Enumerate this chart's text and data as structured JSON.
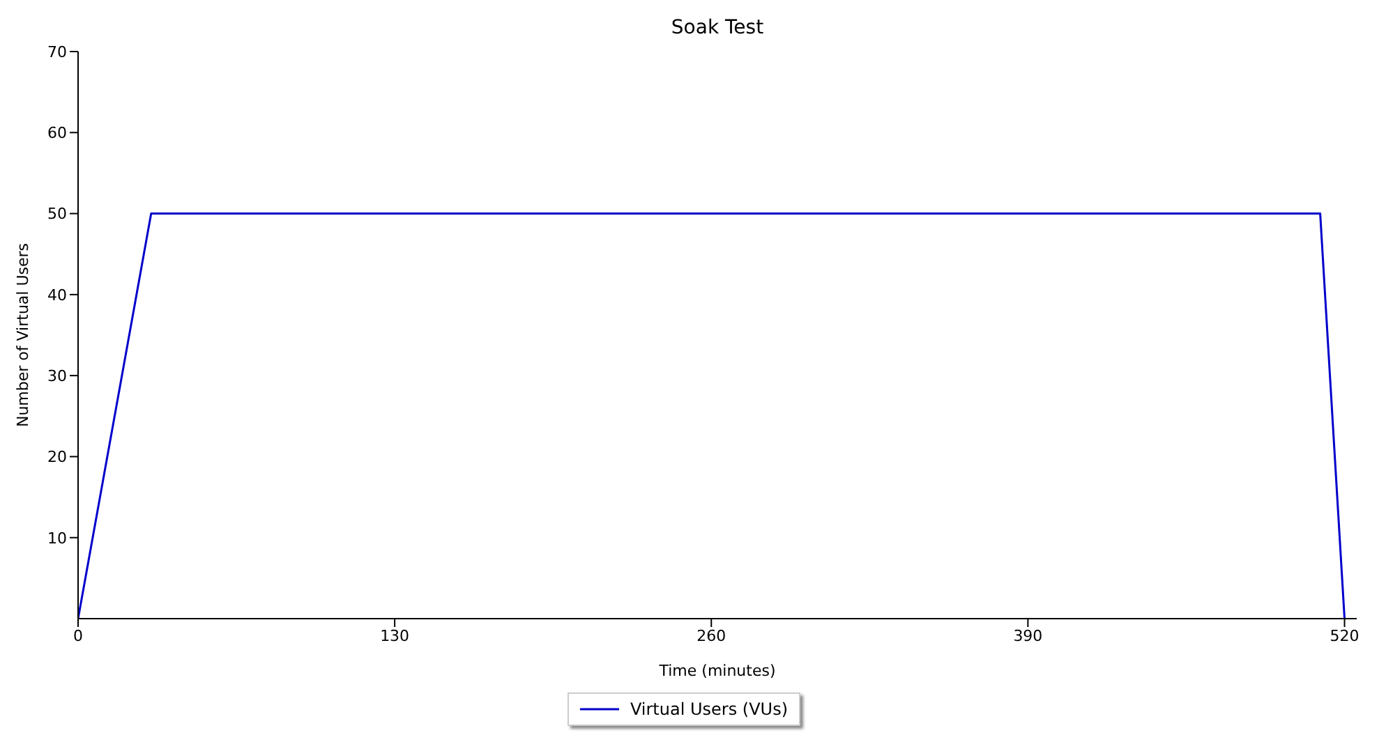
{
  "chart_data": {
    "type": "line",
    "title": "Soak Test",
    "xlabel": "Time (minutes)",
    "ylabel": "Number of Virtual Users",
    "x": [
      0,
      30,
      510,
      520
    ],
    "series": [
      {
        "name": "Virtual Users (VUs)",
        "color": "#0000cc",
        "values": [
          0,
          50,
          50,
          0
        ]
      }
    ],
    "xlim": [
      0,
      525
    ],
    "xticks": [
      0,
      130,
      260,
      390,
      520
    ],
    "ylim": [
      0,
      70
    ],
    "yticks": [
      10,
      20,
      30,
      40,
      50,
      60,
      70
    ],
    "grid": false,
    "legend": "bottom",
    "marker": "none",
    "line_style": "solid"
  }
}
